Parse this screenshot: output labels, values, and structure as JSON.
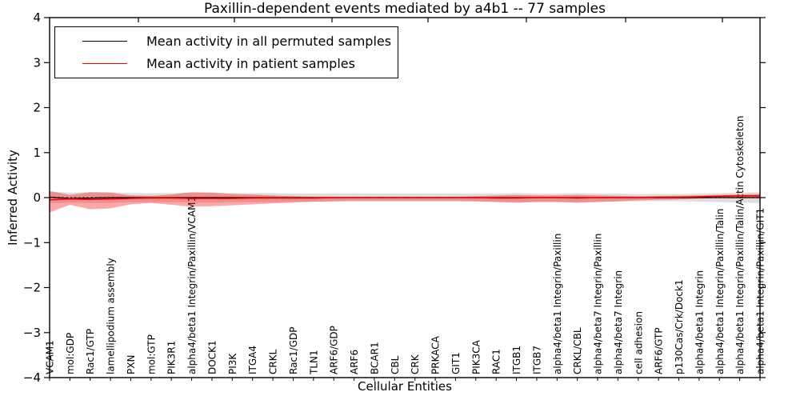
{
  "title": "Paxillin-dependent events mediated by a4b1 -- 77 samples",
  "axes": {
    "x_label": "Cellular Entities",
    "y_label": "Inferred Activity"
  },
  "legend": {
    "items": [
      {
        "label": "Mean activity in all permuted samples",
        "color": "#000000"
      },
      {
        "label": "Mean activity in patient samples",
        "color": "#ff0000"
      }
    ],
    "position": "upper left"
  },
  "chart_data": {
    "type": "line",
    "title": "Paxillin-dependent events mediated by a4b1 -- 77 samples",
    "xlabel": "Cellular Entities",
    "ylabel": "Inferred Activity",
    "ylim": [
      -4,
      4
    ],
    "yticks": [
      4,
      3,
      2,
      1,
      0,
      -1,
      -2,
      -3,
      -4
    ],
    "grid": false,
    "legend_position": "upper left",
    "sample_count": 77,
    "categories": [
      "VCAM1",
      "mol:GDP",
      "Rac1/GTP",
      "lamellipodium assembly",
      "PXN",
      "mol:GTP",
      "PIK3R1",
      "alpha4/beta1 Integrin/Paxillin/VCAM1",
      "DOCK1",
      "PI3K",
      "ITGA4",
      "CRKL",
      "Rac1/GDP",
      "TLN1",
      "ARF6/GDP",
      "ARF6",
      "BCAR1",
      "CBL",
      "CRK",
      "PRKACA",
      "GIT1",
      "PIK3CA",
      "RAC1",
      "ITGB1",
      "ITGB7",
      "alpha4/beta1 Integrin/Paxillin",
      "CRKL/CBL",
      "alpha4/beta7 Integrin/Paxillin",
      "alpha4/beta7 Integrin",
      "cell adhesion",
      "ARF6/GTP",
      "p130Cas/Crk/Dock1",
      "alpha4/beta1 Integrin",
      "alpha4/beta1 Integrin/Paxillin/Talin",
      "alpha4/beta1 Integrin/Paxillin/Talin/Actin Cytoskeleton",
      "alpha4/beta1 Integrin/Paxillin/GIT1"
    ],
    "series": [
      {
        "name": "Mean activity in all permuted samples",
        "color": "#000000",
        "style": "solid",
        "values": [
          0.01,
          -0.02,
          -0.01,
          0,
          0,
          0,
          0,
          0,
          0,
          0,
          0,
          0,
          0,
          0,
          0,
          0,
          0,
          0,
          0,
          0,
          0,
          0,
          0,
          0,
          0,
          0,
          0,
          0,
          0,
          0,
          0,
          0,
          0,
          0,
          0,
          0
        ]
      },
      {
        "name": "Mean activity in patient samples",
        "color": "#ff0000",
        "style": "solid",
        "values": [
          -0.05,
          -0.03,
          -0.04,
          -0.03,
          -0.02,
          -0.01,
          -0.01,
          -0.02,
          -0.02,
          -0.02,
          -0.01,
          -0.01,
          -0.01,
          -0.01,
          0,
          0,
          0,
          0,
          0,
          0,
          0,
          0,
          -0.01,
          -0.01,
          0,
          0,
          -0.01,
          0,
          0,
          0,
          0.01,
          0.01,
          0.02,
          0.03,
          0.04,
          0.04
        ]
      },
      {
        "name": "zero-reference",
        "color": "#000000",
        "style": "dotted",
        "values": [
          0,
          0,
          0,
          0,
          0,
          0,
          0,
          0,
          0,
          0,
          0,
          0,
          0,
          0,
          0,
          0,
          0,
          0,
          0,
          0,
          0,
          0,
          0,
          0,
          0,
          0,
          0,
          0,
          0,
          0,
          0,
          0,
          0,
          0,
          0,
          0
        ]
      }
    ],
    "bands": [
      {
        "name": "permuted-samples-spread",
        "color": "rgba(0,0,0,0.13)",
        "upper": [
          0.13,
          0.11,
          0.12,
          0.12,
          0.1,
          0.1,
          0.1,
          0.11,
          0.11,
          0.1,
          0.1,
          0.1,
          0.09,
          0.09,
          0.09,
          0.09,
          0.09,
          0.09,
          0.09,
          0.09,
          0.09,
          0.09,
          0.09,
          0.1,
          0.09,
          0.09,
          0.1,
          0.09,
          0.09,
          0.08,
          0.08,
          0.08,
          0.09,
          0.1,
          0.11,
          0.12
        ],
        "lower": [
          -0.13,
          -0.11,
          -0.12,
          -0.12,
          -0.1,
          -0.1,
          -0.1,
          -0.11,
          -0.11,
          -0.1,
          -0.1,
          -0.1,
          -0.09,
          -0.09,
          -0.09,
          -0.09,
          -0.09,
          -0.09,
          -0.09,
          -0.09,
          -0.09,
          -0.09,
          -0.09,
          -0.1,
          -0.09,
          -0.09,
          -0.1,
          -0.09,
          -0.09,
          -0.08,
          -0.08,
          -0.08,
          -0.09,
          -0.1,
          -0.11,
          -0.12
        ]
      },
      {
        "name": "patient-samples-spread",
        "color": "rgba(255,0,0,0.35)",
        "upper": [
          0.15,
          0.06,
          0.12,
          0.11,
          0.05,
          0.04,
          0.07,
          0.12,
          0.11,
          0.08,
          0.07,
          0.05,
          0.03,
          0.02,
          0.02,
          0.02,
          0.02,
          0.02,
          0.02,
          0.02,
          0.02,
          0.03,
          0.05,
          0.06,
          0.05,
          0.05,
          0.06,
          0.05,
          0.04,
          0.03,
          0.03,
          0.04,
          0.05,
          0.06,
          0.07,
          0.08
        ],
        "lower": [
          -0.33,
          -0.16,
          -0.26,
          -0.24,
          -0.15,
          -0.12,
          -0.16,
          -0.2,
          -0.19,
          -0.17,
          -0.15,
          -0.13,
          -0.11,
          -0.09,
          -0.08,
          -0.07,
          -0.07,
          -0.07,
          -0.07,
          -0.07,
          -0.07,
          -0.08,
          -0.1,
          -0.11,
          -0.1,
          -0.1,
          -0.11,
          -0.1,
          -0.08,
          -0.06,
          -0.05,
          -0.04,
          -0.02,
          -0.01,
          0.0,
          0.0
        ]
      }
    ]
  }
}
